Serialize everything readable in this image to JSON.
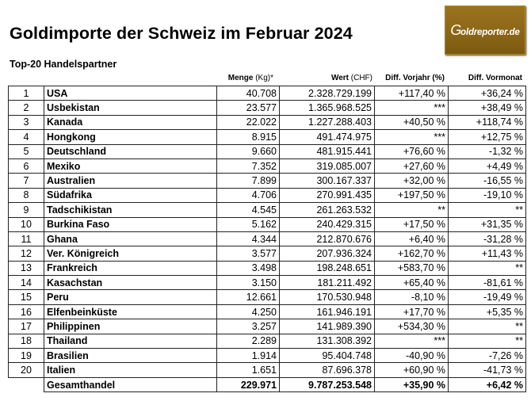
{
  "title": "Goldimporte der Schweiz im Februar 2024",
  "subtitle": "Top-20 Handelspartner",
  "logo": {
    "g": "G",
    "text": "oldreporter.de",
    "bg_color": "#8a6515"
  },
  "headers": {
    "menge": "Menge",
    "menge_unit": " (Kg)*",
    "wert": "Wert",
    "wert_unit": " (CHF)",
    "vorjahr": "Diff. Vorjahr (%)",
    "vormonat": "Diff. Vormonat"
  },
  "rows": [
    {
      "rank": "1",
      "country": "USA",
      "menge": "40.708",
      "wert": "2.328.729.199",
      "vorjahr": "+117,40 %",
      "vormonat": "+36,24 %"
    },
    {
      "rank": "2",
      "country": "Usbekistan",
      "menge": "23.577",
      "wert": "1.365.968.525",
      "vorjahr": "***",
      "vormonat": "+38,49 %"
    },
    {
      "rank": "3",
      "country": "Kanada",
      "menge": "22.022",
      "wert": "1.227.288.403",
      "vorjahr": "+40,50 %",
      "vormonat": "+118,74 %"
    },
    {
      "rank": "4",
      "country": "Hongkong",
      "menge": "8.915",
      "wert": "491.474.975",
      "vorjahr": "***",
      "vormonat": "+12,75 %"
    },
    {
      "rank": "5",
      "country": "Deutschland",
      "menge": "9.660",
      "wert": "481.915.441",
      "vorjahr": "+76,60 %",
      "vormonat": "-1,32 %"
    },
    {
      "rank": "6",
      "country": "Mexiko",
      "menge": "7.352",
      "wert": "319.085.007",
      "vorjahr": "+27,60 %",
      "vormonat": "+4,49 %"
    },
    {
      "rank": "7",
      "country": "Australien",
      "menge": "7.899",
      "wert": "300.167.337",
      "vorjahr": "+32,00 %",
      "vormonat": "-16,55 %"
    },
    {
      "rank": "8",
      "country": "Südafrika",
      "menge": "4.706",
      "wert": "270.991.435",
      "vorjahr": "+197,50 %",
      "vormonat": "-19,10 %"
    },
    {
      "rank": "9",
      "country": "Tadschikistan",
      "menge": "4.545",
      "wert": "261.263.532",
      "vorjahr": "**",
      "vormonat": "**"
    },
    {
      "rank": "10",
      "country": "Burkina Faso",
      "menge": "5.162",
      "wert": "240.429.315",
      "vorjahr": "+17,50 %",
      "vormonat": "+31,35 %"
    },
    {
      "rank": "11",
      "country": "Ghana",
      "menge": "4.344",
      "wert": "212.870.676",
      "vorjahr": "+6,40 %",
      "vormonat": "-31,28 %"
    },
    {
      "rank": "12",
      "country": "Ver. Königreich",
      "menge": "3.577",
      "wert": "207.936.324",
      "vorjahr": "+162,70 %",
      "vormonat": "+11,43 %"
    },
    {
      "rank": "13",
      "country": "Frankreich",
      "menge": "3.498",
      "wert": "198.248.651",
      "vorjahr": "+583,70 %",
      "vormonat": "**"
    },
    {
      "rank": "14",
      "country": "Kasachstan",
      "menge": "3.150",
      "wert": "181.211.492",
      "vorjahr": "+65,40 %",
      "vormonat": "-81,61 %"
    },
    {
      "rank": "15",
      "country": "Peru",
      "menge": "12.661",
      "wert": "170.530.948",
      "vorjahr": "-8,10 %",
      "vormonat": "-19,49 %"
    },
    {
      "rank": "16",
      "country": "Elfenbeinküste",
      "menge": "4.250",
      "wert": "161.946.191",
      "vorjahr": "+17,70 %",
      "vormonat": "+5,35 %"
    },
    {
      "rank": "17",
      "country": "Philippinen",
      "menge": "3.257",
      "wert": "141.989.390",
      "vorjahr": "+534,30 %",
      "vormonat": "**"
    },
    {
      "rank": "18",
      "country": "Thailand",
      "menge": "2.289",
      "wert": "131.308.392",
      "vorjahr": "***",
      "vormonat": "**"
    },
    {
      "rank": "19",
      "country": "Brasilien",
      "menge": "1.914",
      "wert": "95.404.748",
      "vorjahr": "-40,90 %",
      "vormonat": "-7,26 %"
    },
    {
      "rank": "20",
      "country": "Italien",
      "menge": "1.651",
      "wert": "87.696.378",
      "vorjahr": "+60,90 %",
      "vormonat": "-41,73 %"
    }
  ],
  "total": {
    "country": "Gesamthandel",
    "menge": "229.971",
    "wert": "9.787.253.548",
    "vorjahr": "+35,90 %",
    "vormonat": "+6,42 %"
  }
}
